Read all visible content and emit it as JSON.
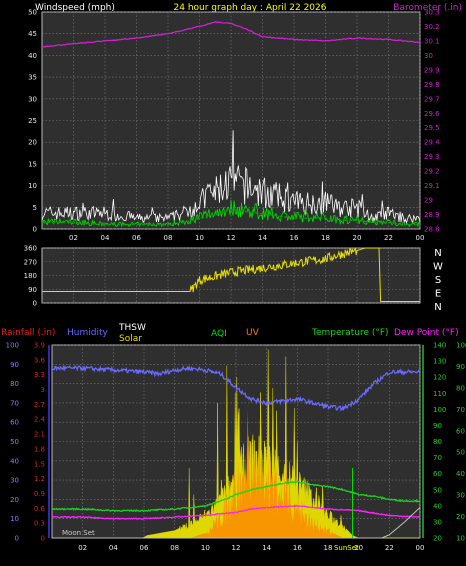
{
  "header": {
    "left_title": "Windspeed (mph)",
    "center_title": "24 hour graph day : April 22 2026",
    "right_title": "Barometer (.in)"
  },
  "colors": {
    "background": "#000000",
    "plot_background": "#2f2f2f",
    "barometer": "#d020d0",
    "wind_gust": "#ffffff",
    "wind_speed": "#00e000",
    "wind_avg": "#00a000",
    "direction": "#e8e000",
    "rainfall": "#e02020",
    "humidity": "#6a6aff",
    "thsw": "#ffffff",
    "solar": "#e8e000",
    "aqi": "#00e000",
    "uv": "#ff8000",
    "temperature": "#20d020",
    "dew_point": "#ff20ff",
    "moon": "#a0a0a0"
  },
  "chart_data": [
    {
      "type": "line",
      "name": "wind-barometer",
      "title": "24 hour graph day : April 22 2026",
      "ylabel": "Windspeed (mph)",
      "y2label": "Barometer (.in)",
      "x_ticks": [
        "02",
        "04",
        "06",
        "08",
        "10",
        "12",
        "14",
        "16",
        "18",
        "20",
        "22",
        "00"
      ],
      "y_ticks": [
        0,
        5,
        10,
        15,
        20,
        25,
        30,
        35,
        40,
        45,
        50
      ],
      "ylim": [
        0,
        50
      ],
      "y2_ticks": [
        "28.8",
        "28.9",
        "29",
        "29.1",
        "29.2",
        "29.3",
        "29.4",
        "29.5",
        "29.6",
        "29.7",
        "29.8",
        "29.9",
        "30",
        "30.1",
        "30.2",
        "30.3"
      ],
      "y2lim": [
        28.8,
        30.3
      ],
      "series": [
        {
          "name": "Barometer",
          "axis": "y2",
          "x": [
            0,
            2,
            4,
            6,
            8,
            10,
            11,
            12,
            13,
            14,
            16,
            18,
            20,
            22,
            24
          ],
          "values": [
            30.06,
            30.08,
            30.1,
            30.12,
            30.15,
            30.2,
            30.23,
            30.22,
            30.18,
            30.13,
            30.11,
            30.1,
            30.12,
            30.11,
            30.09
          ]
        }
      ],
      "wind_profile": {
        "x": [
          0,
          2,
          4,
          6,
          8,
          9,
          10,
          11,
          12,
          13,
          14,
          15,
          16,
          17,
          18,
          19,
          20,
          21,
          22,
          23,
          24
        ],
        "gust": [
          3,
          3,
          3,
          2,
          2,
          3,
          5,
          7,
          9,
          8,
          7,
          6,
          5,
          5,
          5,
          4,
          4,
          2,
          3,
          2,
          2
        ],
        "avg": [
          1.5,
          1.5,
          1,
          1,
          1,
          1.5,
          2.5,
          3.5,
          4.5,
          4,
          3.5,
          3,
          2.5,
          2.5,
          2.5,
          2,
          2,
          1.5,
          1.5,
          1,
          1
        ]
      }
    },
    {
      "type": "scatter",
      "name": "wind-direction",
      "ylabel": "Wind direction",
      "y_ticks": [
        0,
        90,
        180,
        270,
        360
      ],
      "ylim": [
        0,
        360
      ],
      "compass": [
        "N",
        "W",
        "S",
        "E",
        "N"
      ],
      "x_ticks": [
        "02",
        "04",
        "06",
        "08",
        "10",
        "12",
        "14",
        "16",
        "18",
        "20",
        "22",
        "00"
      ],
      "series": [
        {
          "name": "Direction",
          "x": [
            0,
            2,
            4,
            6,
            8,
            9.4,
            10,
            12,
            14,
            16,
            18,
            19,
            19.9,
            20.5,
            21.4,
            21.5,
            22,
            24
          ],
          "values": [
            75,
            75,
            75,
            75,
            75,
            75,
            150,
            200,
            230,
            260,
            290,
            320,
            340,
            360,
            360,
            10,
            10,
            10
          ]
        }
      ]
    },
    {
      "type": "line",
      "name": "weather-multi",
      "legend": [
        "Rainfall (.in)",
        "Humidity",
        "THSW",
        "Solar",
        "AQI",
        "UV",
        "Temperature (°F)",
        "Dew Point (°F)"
      ],
      "left_ticks": [
        "0",
        "0.3",
        "0.6",
        "0.9",
        "1.2",
        "1.5",
        "1.8",
        "2.1",
        "2.4",
        "2.7",
        "3",
        "3.3",
        "3.6",
        "3.9"
      ],
      "left_lim": [
        0,
        3.9
      ],
      "left2_ticks": [
        0,
        10,
        20,
        30,
        40,
        50,
        60,
        70,
        80,
        90,
        100
      ],
      "left2_lim": [
        0,
        100
      ],
      "right_ticks": [
        20,
        30,
        40,
        50,
        60,
        70,
        80,
        90,
        100,
        110,
        120,
        130,
        140
      ],
      "right_lim": [
        20,
        140
      ],
      "right2_ticks": [
        10,
        20,
        30,
        40,
        50,
        60,
        70,
        80,
        90,
        100
      ],
      "right2_lim": [
        10,
        100
      ],
      "x_ticks": [
        "02",
        "04",
        "06",
        "08",
        "10",
        "12",
        "14",
        "16",
        "18",
        "20",
        "22",
        "00"
      ],
      "annotations": [
        "Moon Set",
        "SunSet"
      ],
      "series": [
        {
          "name": "Humidity",
          "axis": "left2",
          "x": [
            0,
            2,
            4,
            6,
            7,
            8,
            9,
            10,
            11,
            12,
            13,
            14,
            15,
            16,
            17,
            18,
            19,
            20,
            21,
            22,
            23,
            24
          ],
          "values": [
            88,
            88,
            87,
            86,
            85,
            87,
            88,
            87,
            85,
            78,
            72,
            70,
            71,
            72,
            70,
            68,
            67,
            72,
            80,
            86,
            86,
            86
          ]
        },
        {
          "name": "Temperature",
          "axis": "right",
          "x": [
            0,
            2,
            4,
            6,
            8,
            9,
            10,
            11,
            12,
            13,
            14,
            15,
            16,
            17,
            18,
            19,
            20,
            21,
            22,
            23,
            24
          ],
          "values": [
            38,
            38,
            37,
            37,
            38,
            39,
            40,
            43,
            47,
            50,
            52,
            54,
            55,
            53,
            52,
            50,
            47,
            46,
            44,
            43,
            43
          ]
        },
        {
          "name": "Dew Point",
          "axis": "right",
          "x": [
            0,
            2,
            4,
            6,
            8,
            10,
            12,
            13,
            14,
            16,
            18,
            20,
            22,
            24
          ],
          "values": [
            33,
            33,
            32,
            32,
            33,
            34,
            36,
            38,
            39,
            40,
            38,
            37,
            34,
            33
          ]
        },
        {
          "name": "THSW",
          "axis": "right",
          "x": [
            0,
            21.5,
            22,
            23,
            24
          ],
          "values": [
            20,
            20,
            22,
            30,
            39
          ]
        },
        {
          "name": "Solar",
          "axis": "left",
          "x": [
            0,
            5.9,
            6.2,
            8,
            9,
            10,
            11,
            12,
            13,
            14,
            15,
            16,
            17,
            18,
            19,
            19.6,
            20,
            24
          ],
          "values": [
            0,
            0,
            0.05,
            0.15,
            0.3,
            0.5,
            0.8,
            1.4,
            1.8,
            1.7,
            1.5,
            1.2,
            0.9,
            0.5,
            0.25,
            0.05,
            0,
            0
          ]
        },
        {
          "name": "UV",
          "axis": "left",
          "x": [
            0,
            9,
            10,
            11,
            12,
            13,
            14,
            15,
            16,
            17,
            18,
            19,
            24
          ],
          "values": [
            0,
            0,
            0.1,
            0.4,
            1.0,
            1.4,
            1.2,
            0.9,
            0.6,
            0.3,
            0.15,
            0,
            0
          ]
        }
      ]
    }
  ]
}
